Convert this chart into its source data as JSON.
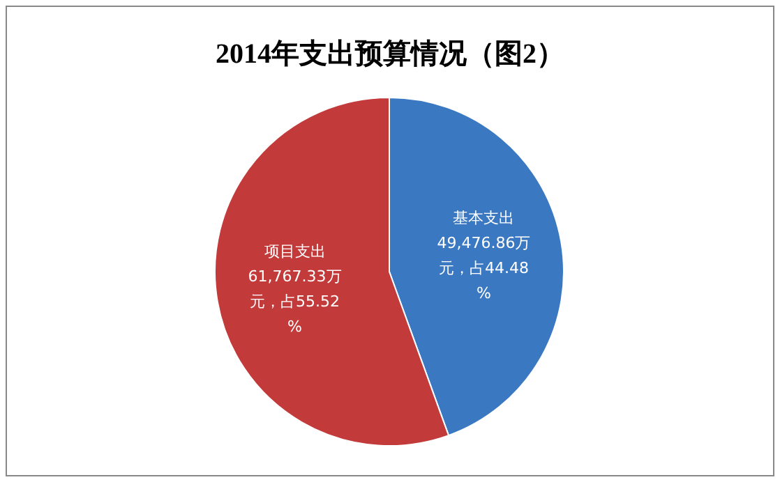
{
  "chart_data": {
    "type": "pie",
    "title": "2014年支出预算情况（图2）",
    "categories": [
      "基本支出",
      "项目支出"
    ],
    "values": [
      49476.86,
      61767.33
    ],
    "colors": [
      "#3b78c2",
      "#c23b3a"
    ],
    "value_labels": [
      "49,476.86万元，占44.48%",
      "61,767.33万元，占55.52%"
    ]
  }
}
